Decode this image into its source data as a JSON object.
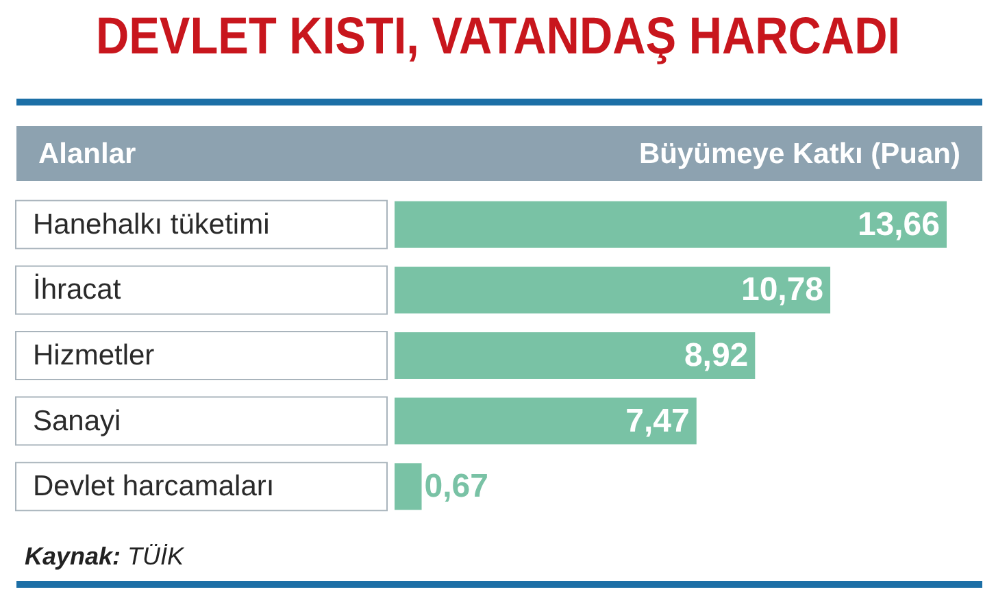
{
  "chart_data": {
    "type": "bar",
    "orientation": "horizontal",
    "title": "DEVLET KISTI, VATANDAŞ HARCADI",
    "ylabel": "Alanlar",
    "xlabel": "Büyümeye Katkı (Puan)",
    "categories": [
      "Hanehalkı tüketimi",
      "İhracat",
      "Hizmetler",
      "Sanayi",
      "Devlet harcamaları"
    ],
    "values": [
      13.66,
      10.78,
      8.92,
      7.47,
      0.67
    ],
    "value_labels": [
      "13,66",
      "10,78",
      "8,92",
      "7,47",
      "0,67"
    ],
    "color": "#79c2a5",
    "tick_labels": "y",
    "annotations": [
      "Kaynak: TÜİK"
    ]
  }
}
